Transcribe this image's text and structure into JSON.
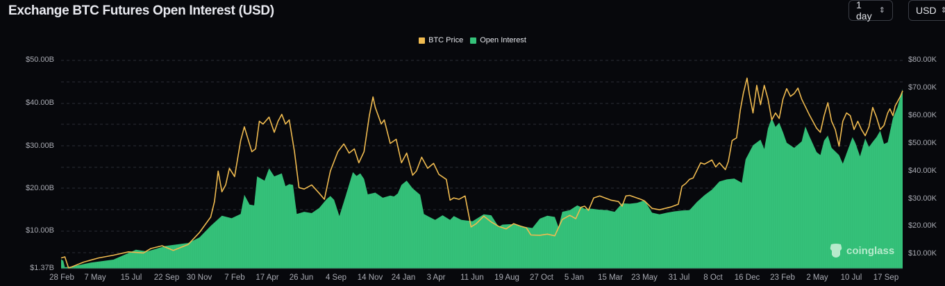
{
  "header": {
    "title": "Exchange BTC Futures Open Interest (USD)",
    "interval_select": "1 day",
    "currency_select": "USD"
  },
  "legend": [
    {
      "label": "BTC Price",
      "color": "#f0bb50"
    },
    {
      "label": "Open Interest",
      "color": "#35c27a"
    }
  ],
  "watermark": "coinglass",
  "chart_data": {
    "type": "bar+line",
    "title": "Exchange BTC Futures Open Interest (USD)",
    "xlabel": "",
    "ylabel_left": "Open Interest (USD)",
    "ylabel_right": "BTC Price (USD)",
    "grid": true,
    "legend_position": "top-center",
    "x_tick_labels": [
      "28 Feb",
      "7 May",
      "15 Jul",
      "22 Sep",
      "30 Nov",
      "7 Feb",
      "17 Apr",
      "26 Jun",
      "4 Sep",
      "14 Nov",
      "24 Jan",
      "3 Apr",
      "11 Jun",
      "19 Aug",
      "27 Oct",
      "5 Jan",
      "15 Mar",
      "23 May",
      "31 Jul",
      "8 Oct",
      "16 Dec",
      "23 Feb",
      "2 May",
      "10 Jul",
      "17 Sep"
    ],
    "y_left_ticks": [
      "$1.37B",
      "$10.00B",
      "$20.00B",
      "$30.00B",
      "$40.00B",
      "$50.00B"
    ],
    "y_left_range": [
      1.37,
      50
    ],
    "y_right_ticks": [
      "$10.00K",
      "$20.00K",
      "$30.00K",
      "$40.00K",
      "$50.00K",
      "$60.00K",
      "$70.00K",
      "$80.00K"
    ],
    "y_right_range": [
      0,
      80000
    ],
    "series": [
      {
        "name": "Open Interest",
        "type": "bar",
        "axis": "left",
        "unit": "USD billions",
        "points": [
          [
            0,
            3.4
          ],
          [
            3,
            3.0
          ],
          [
            5,
            1.5
          ],
          [
            15,
            1.7
          ],
          [
            40,
            2.6
          ],
          [
            70,
            3.3
          ],
          [
            100,
            5.6
          ],
          [
            115,
            5.2
          ],
          [
            140,
            6.5
          ],
          [
            170,
            7.2
          ],
          [
            185,
            8.5
          ],
          [
            200,
            11.2
          ],
          [
            215,
            13.6
          ],
          [
            228,
            13.0
          ],
          [
            240,
            14.0
          ],
          [
            245,
            18.5
          ],
          [
            252,
            16.2
          ],
          [
            258,
            16.0
          ],
          [
            262,
            22.8
          ],
          [
            272,
            21.8
          ],
          [
            278,
            24.7
          ],
          [
            285,
            22.8
          ],
          [
            295,
            23.5
          ],
          [
            300,
            20.5
          ],
          [
            305,
            21.0
          ],
          [
            310,
            20.8
          ],
          [
            315,
            14.0
          ],
          [
            325,
            14.5
          ],
          [
            335,
            14.2
          ],
          [
            345,
            15.4
          ],
          [
            355,
            17.5
          ],
          [
            360,
            18.2
          ],
          [
            365,
            17.3
          ],
          [
            372,
            13.5
          ],
          [
            380,
            18.0
          ],
          [
            390,
            23.8
          ],
          [
            395,
            22.9
          ],
          [
            400,
            23.5
          ],
          [
            405,
            22.2
          ],
          [
            410,
            18.6
          ],
          [
            420,
            19.0
          ],
          [
            430,
            17.8
          ],
          [
            440,
            18.3
          ],
          [
            445,
            18.1
          ],
          [
            450,
            18.8
          ],
          [
            455,
            20.8
          ],
          [
            462,
            21.8
          ],
          [
            470,
            20.0
          ],
          [
            480,
            18.5
          ],
          [
            485,
            14.0
          ],
          [
            490,
            13.5
          ],
          [
            500,
            12.6
          ],
          [
            510,
            13.7
          ],
          [
            520,
            12.6
          ],
          [
            525,
            13.5
          ],
          [
            535,
            12.6
          ],
          [
            550,
            12.3
          ],
          [
            565,
            13.9
          ],
          [
            575,
            13.7
          ],
          [
            585,
            11.0
          ],
          [
            590,
            11.5
          ],
          [
            600,
            11.6
          ],
          [
            610,
            11.5
          ],
          [
            620,
            11.0
          ],
          [
            630,
            10.7
          ],
          [
            640,
            12.9
          ],
          [
            650,
            13.6
          ],
          [
            660,
            13.3
          ],
          [
            665,
            10.9
          ],
          [
            670,
            14.5
          ],
          [
            680,
            14.9
          ],
          [
            690,
            16.0
          ],
          [
            700,
            15.2
          ],
          [
            710,
            15.2
          ],
          [
            720,
            15.0
          ],
          [
            730,
            14.9
          ],
          [
            740,
            14.5
          ],
          [
            750,
            16.5
          ],
          [
            760,
            16.4
          ],
          [
            770,
            16.6
          ],
          [
            780,
            17.2
          ],
          [
            790,
            14.3
          ],
          [
            800,
            13.9
          ],
          [
            810,
            14.3
          ],
          [
            820,
            14.6
          ],
          [
            830,
            14.8
          ],
          [
            840,
            14.9
          ],
          [
            850,
            16.8
          ],
          [
            860,
            18.4
          ],
          [
            870,
            19.7
          ],
          [
            880,
            21.6
          ],
          [
            890,
            22.1
          ],
          [
            900,
            22.3
          ],
          [
            910,
            21.3
          ],
          [
            915,
            26.8
          ],
          [
            925,
            30.1
          ],
          [
            935,
            31.4
          ],
          [
            940,
            29.2
          ],
          [
            945,
            34.1
          ],
          [
            950,
            36.5
          ],
          [
            955,
            34.4
          ],
          [
            960,
            35.4
          ],
          [
            965,
            33.2
          ],
          [
            970,
            30.7
          ],
          [
            980,
            29.5
          ],
          [
            990,
            31.0
          ],
          [
            995,
            34.5
          ],
          [
            1000,
            32.4
          ],
          [
            1010,
            28.5
          ],
          [
            1015,
            27.8
          ],
          [
            1020,
            31.2
          ],
          [
            1025,
            32.4
          ],
          [
            1030,
            29.5
          ],
          [
            1040,
            27.8
          ],
          [
            1045,
            25.8
          ],
          [
            1050,
            28.2
          ],
          [
            1058,
            32.0
          ],
          [
            1062,
            30.6
          ],
          [
            1068,
            27.5
          ],
          [
            1075,
            31.7
          ],
          [
            1080,
            29.7
          ],
          [
            1085,
            30.9
          ],
          [
            1090,
            32.0
          ],
          [
            1095,
            33.5
          ],
          [
            1100,
            30.4
          ],
          [
            1105,
            30.8
          ],
          [
            1112,
            36.5
          ],
          [
            1118,
            39.0
          ],
          [
            1125,
            43.3
          ]
        ]
      },
      {
        "name": "BTC Price",
        "type": "line",
        "axis": "right",
        "unit": "USD",
        "points": [
          [
            0,
            8600
          ],
          [
            5,
            9000
          ],
          [
            10,
            4900
          ],
          [
            30,
            7100
          ],
          [
            50,
            8600
          ],
          [
            70,
            9600
          ],
          [
            90,
            10800
          ],
          [
            110,
            10400
          ],
          [
            120,
            12000
          ],
          [
            135,
            13000
          ],
          [
            150,
            11300
          ],
          [
            170,
            13500
          ],
          [
            185,
            17800
          ],
          [
            200,
            23400
          ],
          [
            205,
            29000
          ],
          [
            210,
            40000
          ],
          [
            215,
            32500
          ],
          [
            220,
            35000
          ],
          [
            225,
            41000
          ],
          [
            232,
            38000
          ],
          [
            240,
            51000
          ],
          [
            245,
            56000
          ],
          [
            255,
            47000
          ],
          [
            260,
            48000
          ],
          [
            265,
            58000
          ],
          [
            270,
            57000
          ],
          [
            278,
            59500
          ],
          [
            285,
            54000
          ],
          [
            290,
            58000
          ],
          [
            295,
            60500
          ],
          [
            300,
            57000
          ],
          [
            305,
            58500
          ],
          [
            312,
            47000
          ],
          [
            318,
            34000
          ],
          [
            325,
            33500
          ],
          [
            335,
            35000
          ],
          [
            345,
            32000
          ],
          [
            352,
            29800
          ],
          [
            360,
            40000
          ],
          [
            370,
            47000
          ],
          [
            378,
            49800
          ],
          [
            385,
            46500
          ],
          [
            392,
            48000
          ],
          [
            398,
            43000
          ],
          [
            405,
            47000
          ],
          [
            412,
            60000
          ],
          [
            417,
            66800
          ],
          [
            420,
            63000
          ],
          [
            428,
            57000
          ],
          [
            432,
            58500
          ],
          [
            440,
            50000
          ],
          [
            448,
            51500
          ],
          [
            455,
            43000
          ],
          [
            462,
            46500
          ],
          [
            470,
            38500
          ],
          [
            475,
            40000
          ],
          [
            482,
            45000
          ],
          [
            490,
            41000
          ],
          [
            498,
            42800
          ],
          [
            505,
            38800
          ],
          [
            515,
            37000
          ],
          [
            520,
            29500
          ],
          [
            525,
            30300
          ],
          [
            532,
            29800
          ],
          [
            540,
            31000
          ],
          [
            548,
            19800
          ],
          [
            555,
            21000
          ],
          [
            565,
            23700
          ],
          [
            575,
            21600
          ],
          [
            585,
            20000
          ],
          [
            595,
            19100
          ],
          [
            605,
            21000
          ],
          [
            615,
            20000
          ],
          [
            622,
            19500
          ],
          [
            628,
            16900
          ],
          [
            640,
            16800
          ],
          [
            650,
            17200
          ],
          [
            660,
            16600
          ],
          [
            670,
            22500
          ],
          [
            680,
            24000
          ],
          [
            688,
            22800
          ],
          [
            695,
            26900
          ],
          [
            700,
            27300
          ],
          [
            705,
            25800
          ],
          [
            712,
            30300
          ],
          [
            720,
            31000
          ],
          [
            728,
            30200
          ],
          [
            735,
            29500
          ],
          [
            745,
            29000
          ],
          [
            750,
            27300
          ],
          [
            755,
            31000
          ],
          [
            760,
            31200
          ],
          [
            775,
            29800
          ],
          [
            780,
            29200
          ],
          [
            790,
            26500
          ],
          [
            800,
            26000
          ],
          [
            815,
            27000
          ],
          [
            825,
            28000
          ],
          [
            830,
            34500
          ],
          [
            835,
            35500
          ],
          [
            840,
            37000
          ],
          [
            845,
            37500
          ],
          [
            855,
            43000
          ],
          [
            860,
            42500
          ],
          [
            870,
            44000
          ],
          [
            875,
            41500
          ],
          [
            880,
            43000
          ],
          [
            888,
            40500
          ],
          [
            892,
            43500
          ],
          [
            897,
            51000
          ],
          [
            903,
            52000
          ],
          [
            908,
            62000
          ],
          [
            912,
            68000
          ],
          [
            917,
            73600
          ],
          [
            920,
            68000
          ],
          [
            925,
            61000
          ],
          [
            930,
            71000
          ],
          [
            935,
            64000
          ],
          [
            940,
            71000
          ],
          [
            945,
            66000
          ],
          [
            950,
            58500
          ],
          [
            955,
            61000
          ],
          [
            960,
            59000
          ],
          [
            965,
            66000
          ],
          [
            970,
            69800
          ],
          [
            975,
            67000
          ],
          [
            980,
            68000
          ],
          [
            985,
            70000
          ],
          [
            990,
            66000
          ],
          [
            1000,
            60500
          ],
          [
            1005,
            58000
          ],
          [
            1010,
            55500
          ],
          [
            1015,
            54000
          ],
          [
            1020,
            60000
          ],
          [
            1025,
            64700
          ],
          [
            1030,
            58000
          ],
          [
            1035,
            55000
          ],
          [
            1040,
            49000
          ],
          [
            1045,
            58000
          ],
          [
            1050,
            61000
          ],
          [
            1055,
            60000
          ],
          [
            1060,
            55000
          ],
          [
            1065,
            58000
          ],
          [
            1070,
            55000
          ],
          [
            1075,
            52800
          ],
          [
            1080,
            56000
          ],
          [
            1085,
            63000
          ],
          [
            1090,
            59500
          ],
          [
            1095,
            55000
          ],
          [
            1100,
            56500
          ],
          [
            1105,
            61000
          ],
          [
            1108,
            62500
          ],
          [
            1112,
            60000
          ],
          [
            1115,
            63500
          ],
          [
            1122,
            67000
          ],
          [
            1125,
            69000
          ]
        ]
      }
    ]
  }
}
